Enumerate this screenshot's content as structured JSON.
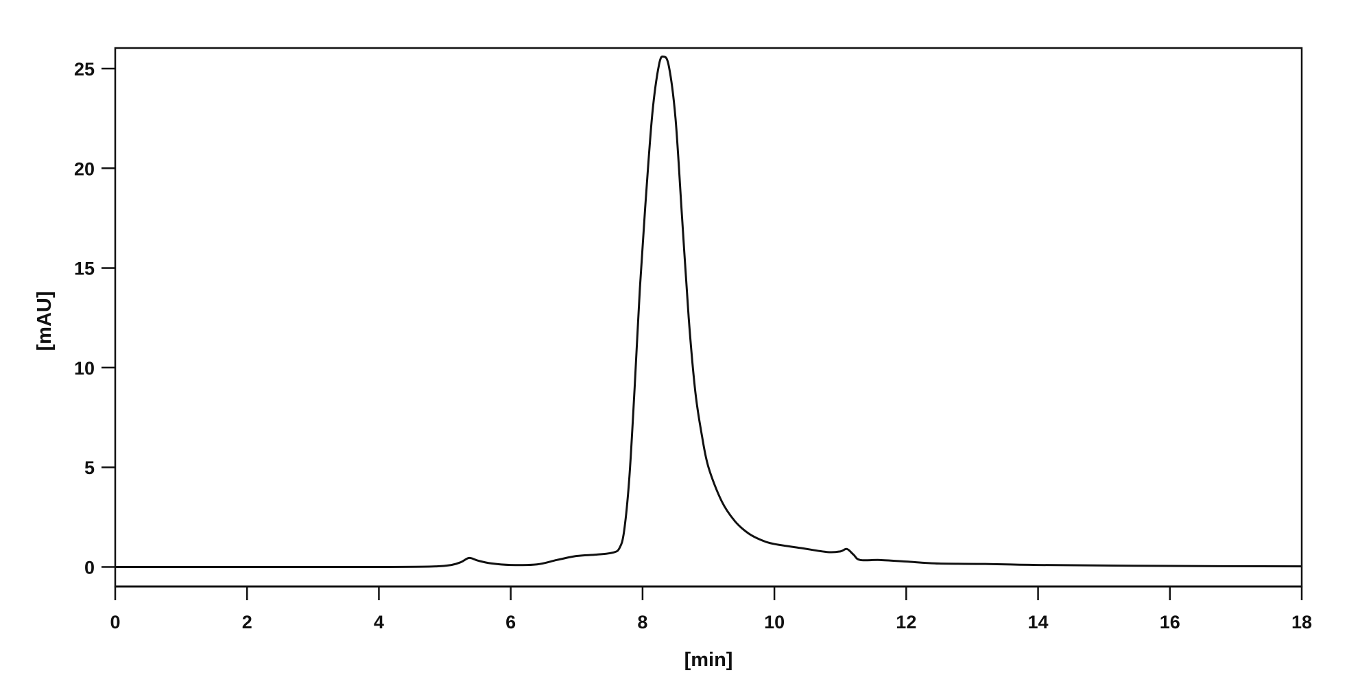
{
  "chart_data": {
    "type": "line",
    "title": "",
    "xlabel": "[min]",
    "ylabel": "[mAU]",
    "xlim": [
      0,
      18
    ],
    "ylim": [
      -0.9,
      26.2
    ],
    "xticks": [
      0,
      2,
      4,
      6,
      8,
      10,
      12,
      14,
      16,
      18
    ],
    "yticks": [
      0,
      5,
      10,
      15,
      20,
      25
    ],
    "grid": false,
    "legend": "none",
    "line_color": "#111111",
    "series": [
      {
        "x": [
          0,
          1,
          2,
          3,
          4,
          4.8,
          5.1,
          5.25,
          5.37,
          5.5,
          5.7,
          6.0,
          6.4,
          6.7,
          7.0,
          7.3,
          7.55,
          7.65,
          7.72,
          7.8,
          7.88,
          7.96,
          8.05,
          8.15,
          8.25,
          8.32,
          8.4,
          8.5,
          8.6,
          8.7,
          8.8,
          8.9,
          9.0,
          9.2,
          9.4,
          9.6,
          9.8,
          10.0,
          10.4,
          10.8,
          11.0,
          11.1,
          11.2,
          11.3,
          11.6,
          12.0,
          12.5,
          13.2,
          14.0,
          16.0,
          18.0
        ],
        "y": [
          0,
          0,
          0,
          0,
          0,
          0.02,
          0.1,
          0.25,
          0.45,
          0.32,
          0.18,
          0.1,
          0.13,
          0.35,
          0.55,
          0.62,
          0.72,
          0.95,
          1.8,
          4.5,
          9,
          14,
          18.5,
          22.8,
          25.2,
          25.6,
          25.1,
          22.5,
          17.5,
          12.5,
          8.8,
          6.6,
          5.0,
          3.3,
          2.3,
          1.7,
          1.35,
          1.15,
          0.95,
          0.75,
          0.78,
          0.9,
          0.62,
          0.35,
          0.35,
          0.27,
          0.17,
          0.15,
          0.1,
          0.05,
          0.03
        ]
      }
    ]
  }
}
